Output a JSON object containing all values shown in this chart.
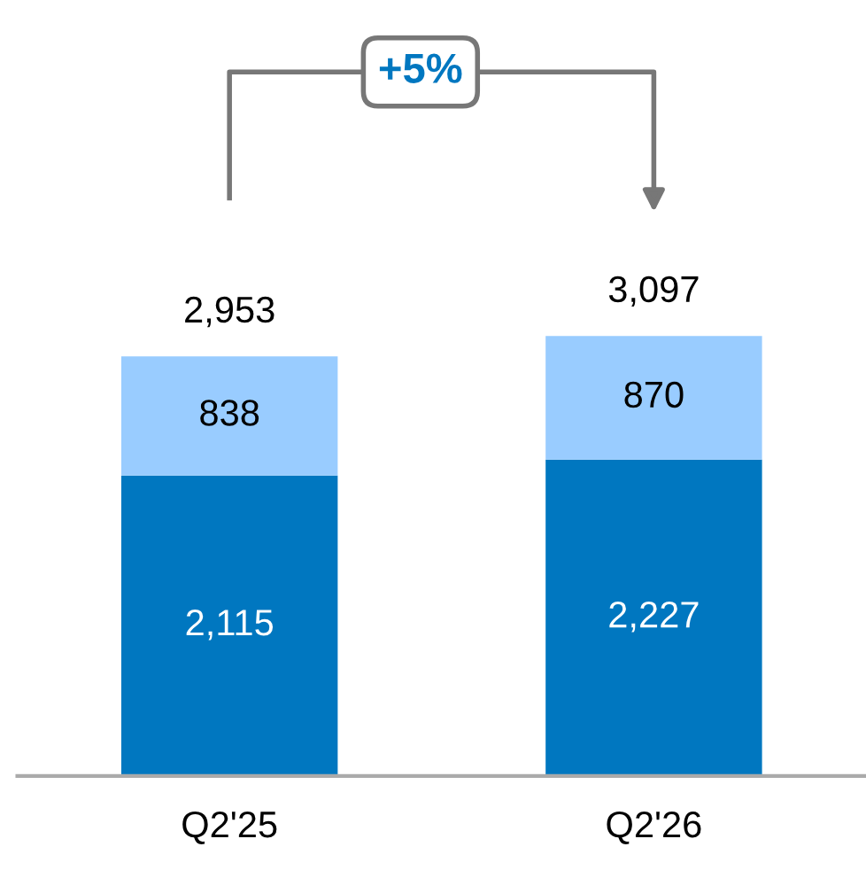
{
  "chart_data": {
    "type": "bar",
    "stacked": true,
    "categories": [
      "Q2'25",
      "Q2'26"
    ],
    "series": [
      {
        "color": "#0077c0",
        "values": [
          2115,
          2227
        ],
        "value_labels": [
          "2,115",
          "2,227"
        ]
      },
      {
        "color": "#99ccff",
        "values": [
          838,
          870
        ],
        "value_labels": [
          "838",
          "870"
        ]
      }
    ],
    "totals": [
      "2,953",
      "3,097"
    ],
    "annotations": [
      "+5%"
    ],
    "grid": false,
    "legend": false
  }
}
